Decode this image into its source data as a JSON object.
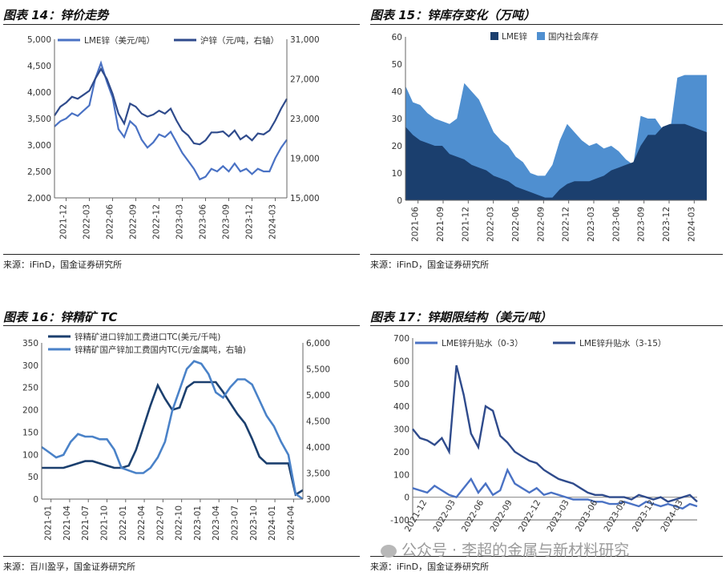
{
  "panels": [
    {
      "title": "图表 14：锌价走势",
      "source": "来源：iFinD，国金证券研究所",
      "chart_data": {
        "type": "line",
        "x_ticks": [
          "2021-12",
          "2022-03",
          "2022-06",
          "2022-09",
          "2022-12",
          "2023-03",
          "2023-06",
          "2023-09",
          "2023-12",
          "2024-03"
        ],
        "y_left": {
          "ticks": [
            "2,000",
            "2,500",
            "3,000",
            "3,500",
            "4,000",
            "4,500",
            "5,000"
          ],
          "lim": [
            2000,
            5000
          ]
        },
        "y_right": {
          "ticks": [
            "15,000",
            "19,000",
            "23,000",
            "27,000",
            "31,000"
          ],
          "lim": [
            15000,
            31000
          ]
        },
        "series": [
          {
            "name": "LME锌（美元/吨）",
            "axis": "left",
            "color": "#4a72c4",
            "values": [
              3350,
              3450,
              3500,
              3600,
              3550,
              3650,
              3750,
              4250,
              4550,
              4200,
              3900,
              3300,
              3150,
              3450,
              3350,
              3100,
              2950,
              3050,
              3200,
              3150,
              3250,
              3050,
              2850,
              2700,
              2550,
              2350,
              2400,
              2550,
              2500,
              2600,
              2500,
              2650,
              2500,
              2550,
              2450,
              2550,
              2500,
              2500,
              2750,
              2950,
              3100
            ]
          },
          {
            "name": "沪锌（元/吨，右轴）",
            "axis": "right",
            "color": "#2f4b8c",
            "values": [
              23300,
              24200,
              24600,
              25200,
              25000,
              25400,
              25800,
              27000,
              28000,
              27000,
              25500,
              23500,
              22500,
              24500,
              24200,
              23500,
              23200,
              23400,
              23800,
              23500,
              24000,
              22800,
              21800,
              21300,
              20500,
              20400,
              20800,
              21600,
              21600,
              21700,
              21200,
              21800,
              20900,
              21300,
              20800,
              21500,
              21400,
              21800,
              22800,
              24000,
              25000
            ]
          }
        ]
      }
    },
    {
      "title": "图表 15：锌库存变化（万吨）",
      "source": "来源：iFinD，国金证券研究所",
      "chart_data": {
        "type": "area",
        "x_ticks": [
          "2021-06",
          "2021-09",
          "2021-12",
          "2022-03",
          "2022-06",
          "2022-09",
          "2022-12",
          "2023-03",
          "2023-06",
          "2023-09",
          "2023-12",
          "2024-03"
        ],
        "y": {
          "ticks": [
            "0",
            "10",
            "20",
            "30",
            "40",
            "50",
            "60"
          ],
          "lim": [
            0,
            60
          ]
        },
        "series": [
          {
            "name": "LME锌",
            "color": "#1b3f6e",
            "values": [
              27,
              24,
              22,
              21,
              20,
              20,
              17,
              16,
              15,
              13,
              12,
              11,
              9,
              8,
              7,
              5,
              4,
              3,
              2,
              1,
              1,
              4,
              6,
              7,
              7,
              7,
              8,
              9,
              11,
              12,
              13,
              14,
              20,
              24,
              24,
              27,
              28,
              28,
              28,
              27,
              26,
              25
            ]
          },
          {
            "name": "国内社会库存",
            "color": "#4f8fd0",
            "values": [
              42,
              36,
              35,
              32,
              30,
              29,
              28,
              30,
              43,
              40,
              37,
              31,
              25,
              22,
              20,
              16,
              14,
              10,
              9,
              9,
              13,
              22,
              28,
              25,
              22,
              20,
              21,
              19,
              20,
              18,
              15,
              13,
              31,
              30,
              30,
              26,
              25,
              45,
              46,
              46,
              46,
              46
            ]
          }
        ]
      }
    },
    {
      "title": "图表 16：锌精矿 TC",
      "source": "来源：百川盈孚，国金证券研究所",
      "chart_data": {
        "type": "line",
        "x_ticks": [
          "2021-01",
          "2021-04",
          "2021-07",
          "2021-10",
          "2022-01",
          "2022-04",
          "2022-07",
          "2022-10",
          "2023-01",
          "2023-04",
          "2023-07",
          "2023-10",
          "2024-01",
          "2024-04"
        ],
        "y_left": {
          "ticks": [
            "0",
            "50",
            "100",
            "150",
            "200",
            "250",
            "300",
            "350"
          ],
          "lim": [
            0,
            350
          ]
        },
        "y_right": {
          "ticks": [
            "3,000",
            "3,500",
            "4,000",
            "4,500",
            "5,000",
            "5,500",
            "6,000"
          ],
          "lim": [
            3000,
            6000
          ]
        },
        "series": [
          {
            "name": "锌精矿进口锌加工费进口TC(美元/千吨)",
            "axis": "left",
            "color": "#1b3f6e",
            "values": [
              70,
              70,
              70,
              70,
              75,
              80,
              85,
              85,
              80,
              75,
              70,
              70,
              75,
              110,
              160,
              210,
              255,
              225,
              200,
              205,
              250,
              262,
              262,
              262,
              262,
              240,
              215,
              190,
              170,
              135,
              95,
              80,
              80,
              80,
              80,
              10,
              20
            ]
          },
          {
            "name": "锌精矿国产锌加工费国内TC(元/金属吨，右轴)",
            "axis": "right",
            "color": "#4a82c8",
            "values": [
              4000,
              3900,
              3800,
              3850,
              4100,
              4250,
              4200,
              4200,
              4150,
              4150,
              3950,
              3600,
              3550,
              3500,
              3500,
              3600,
              3800,
              4100,
              4700,
              5100,
              5500,
              5650,
              5600,
              5400,
              5050,
              4950,
              5150,
              5300,
              5300,
              5200,
              4900,
              4600,
              4400,
              4100,
              3850,
              3100,
              3000
            ]
          }
        ]
      }
    },
    {
      "title": "图表 17：锌期限结构（美元/吨）",
      "source": "来源：iFinD，国金证券研究所",
      "chart_data": {
        "type": "line",
        "x_ticks": [
          "2021-12",
          "2022-03",
          "2022-06",
          "2022-09",
          "2022-12",
          "2023-03",
          "2023-06",
          "2023-09",
          "2023-12",
          "2024-03"
        ],
        "y": {
          "ticks": [
            "-100",
            "0",
            "100",
            "200",
            "300",
            "400",
            "500",
            "600",
            "700"
          ],
          "lim": [
            -100,
            700
          ]
        },
        "series": [
          {
            "name": "LME锌升贴水（0-3）",
            "color": "#4a72c4",
            "values": [
              40,
              30,
              20,
              50,
              30,
              10,
              0,
              40,
              80,
              20,
              60,
              10,
              30,
              120,
              60,
              40,
              20,
              40,
              10,
              20,
              10,
              0,
              -10,
              -10,
              -10,
              -20,
              -20,
              -30,
              -30,
              -20,
              -30,
              -40,
              -20,
              -30,
              -40,
              -30,
              -40,
              -50,
              -30,
              -40
            ]
          },
          {
            "name": "LME锌升贴水（3-15）",
            "color": "#2f4b8c",
            "values": [
              300,
              260,
              250,
              230,
              260,
              200,
              580,
              450,
              280,
              220,
              400,
              380,
              270,
              240,
              200,
              180,
              160,
              150,
              120,
              100,
              80,
              70,
              60,
              40,
              20,
              10,
              10,
              0,
              0,
              0,
              -10,
              10,
              0,
              -10,
              0,
              -20,
              -10,
              0,
              10,
              -20
            ]
          }
        ]
      }
    }
  ],
  "watermark": "公众号 · 李超的金属与新材料研究"
}
